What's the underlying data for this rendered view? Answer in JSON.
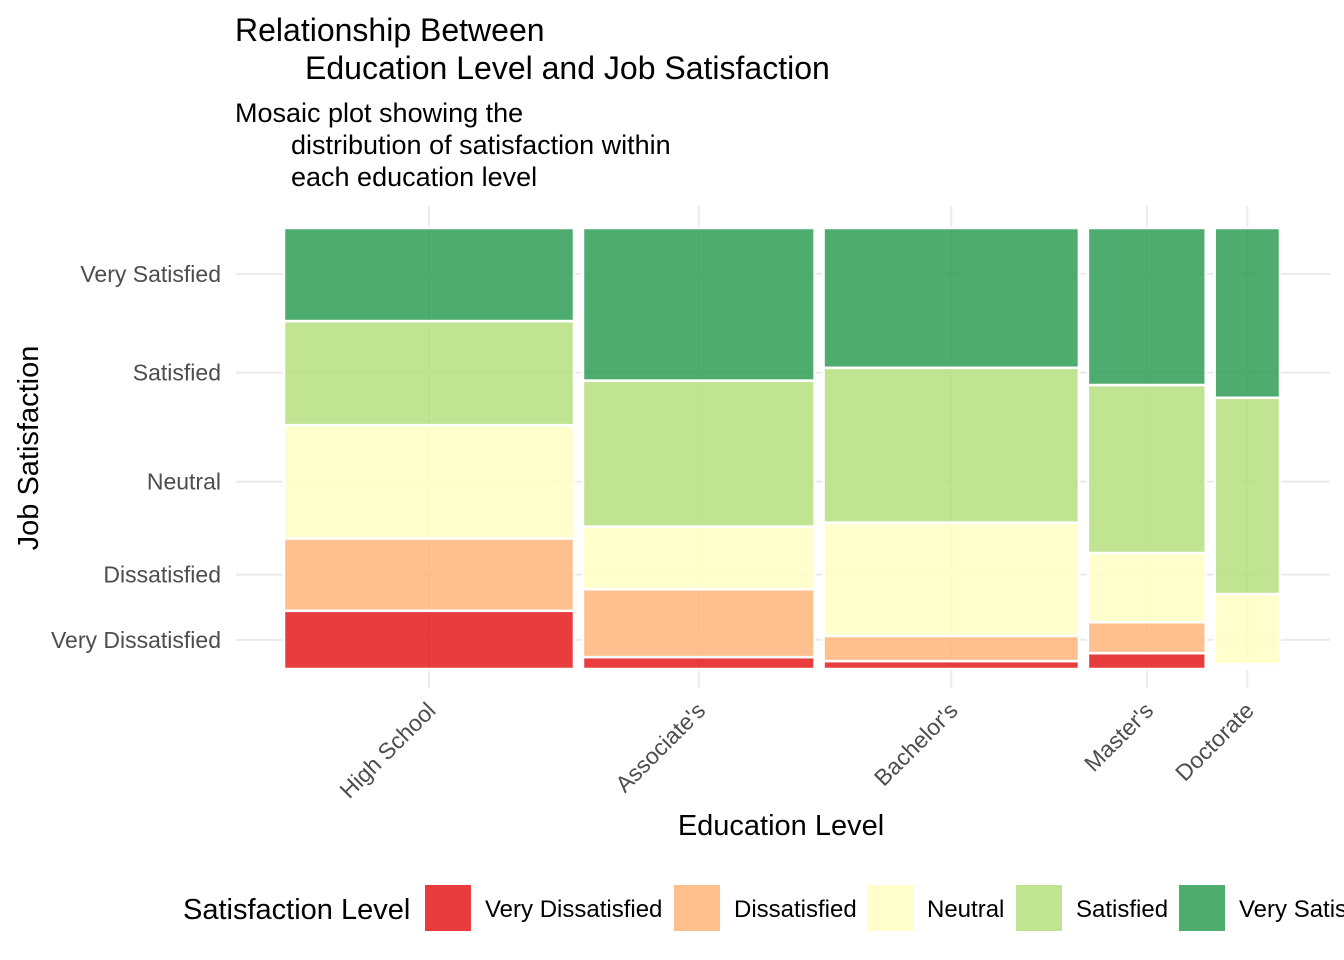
{
  "chart_data": {
    "type": "mosaic",
    "title_lines": [
      "Relationship Between",
      "Education Level and Job Satisfaction"
    ],
    "subtitle_lines": [
      "Mosaic plot showing the",
      "distribution of satisfaction within",
      "each education level"
    ],
    "xlabel": "Education Level",
    "ylabel": "Job Satisfaction",
    "categories": [
      "High School",
      "Associate's",
      "Bachelor's",
      "Master's",
      "Doctorate"
    ],
    "column_widths": [
      0.293,
      0.234,
      0.258,
      0.119,
      0.066
    ],
    "series": [
      {
        "name": "Very Dissatisfied",
        "color": "#E41A1C",
        "values": [
          0.132,
          0.027,
          0.018,
          0.036,
          0.005
        ]
      },
      {
        "name": "Dissatisfied",
        "color": "#FDB57A",
        "values": [
          0.164,
          0.154,
          0.057,
          0.07,
          0.006
        ]
      },
      {
        "name": "Neutral",
        "color": "#FFFFC4",
        "values": [
          0.257,
          0.142,
          0.257,
          0.157,
          0.159
        ]
      },
      {
        "name": "Satisfied",
        "color": "#B5DF7E",
        "values": [
          0.236,
          0.331,
          0.351,
          0.381,
          0.445
        ]
      },
      {
        "name": "Very Satisfied",
        "color": "#2E9E55",
        "values": [
          0.211,
          0.346,
          0.317,
          0.356,
          0.385
        ]
      }
    ],
    "ytick_labels": [
      "Very Dissatisfied",
      "Dissatisfied",
      "Neutral",
      "Satisfied",
      "Very Satisfied"
    ],
    "ytick_positions": [
      0.066,
      0.214,
      0.425,
      0.672,
      0.896
    ],
    "legend": {
      "title": "Satisfaction Level",
      "position": "bottom"
    },
    "grid": true
  }
}
